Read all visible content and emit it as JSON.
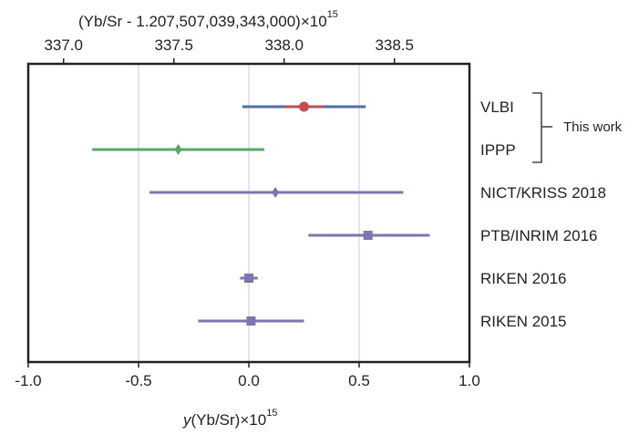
{
  "chart_data": {
    "type": "scatter",
    "orientation": "horizontal-errorbar",
    "title": "",
    "xlabel": {
      "italic": "y",
      "rest": "(Yb/Sr)×10",
      "sup": "15"
    },
    "top_axis": {
      "label_main": "(Yb/Sr - 1.207,507,039,343,000)×10",
      "label_sup": "15",
      "ticks": [
        "337.0",
        "337.5",
        "338.0",
        "338.5"
      ],
      "tick_values": [
        337.0,
        337.5,
        338.0,
        338.5
      ]
    },
    "xlim": [
      -1.0,
      1.0
    ],
    "xticks": [
      "-1.0",
      "-0.5",
      "0.0",
      "0.5",
      "1.0"
    ],
    "xtick_values": [
      -1.0,
      -0.5,
      0.0,
      0.5,
      1.0
    ],
    "grid": "vertical",
    "top_offset_per_bottom_zero": 337.84,
    "categories": [
      "VLBI",
      "IPPP",
      "NICT/KRISS 2018",
      "PTB/INRIM 2016",
      "RIKEN 2016",
      "RIKEN 2015"
    ],
    "series": [
      {
        "category": "VLBI",
        "value": 0.25,
        "low": -0.03,
        "high": 0.53,
        "inner_low": 0.16,
        "inner_high": 0.34,
        "marker": "circle",
        "color": "#4a6fb0",
        "marker_color": "#c44e52"
      },
      {
        "category": "IPPP",
        "value": -0.32,
        "low": -0.71,
        "high": 0.07,
        "marker": "diamond",
        "color": "#55a868"
      },
      {
        "category": "NICT/KRISS 2018",
        "value": 0.12,
        "low": -0.45,
        "high": 0.7,
        "marker": "diamond",
        "color": "#8172b2"
      },
      {
        "category": "PTB/INRIM 2016",
        "value": 0.54,
        "low": 0.27,
        "high": 0.82,
        "marker": "square",
        "color": "#8172b2"
      },
      {
        "category": "RIKEN 2016",
        "value": 0.0,
        "low": -0.04,
        "high": 0.04,
        "marker": "square",
        "color": "#8172b2"
      },
      {
        "category": "RIKEN 2015",
        "value": 0.01,
        "low": -0.23,
        "high": 0.25,
        "marker": "square",
        "color": "#8172b2"
      }
    ],
    "annotation": {
      "text": "This work",
      "groups": [
        "VLBI",
        "IPPP"
      ]
    }
  }
}
